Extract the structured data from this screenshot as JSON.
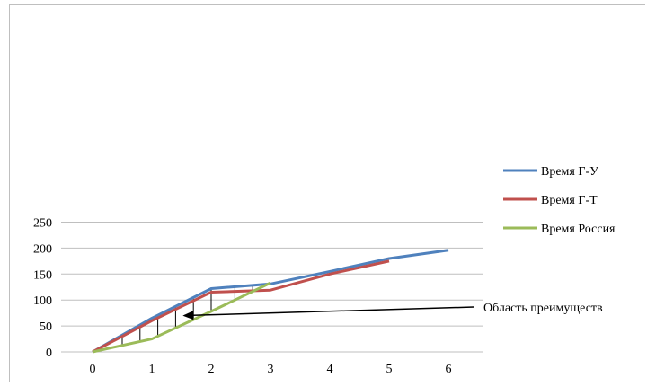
{
  "chart_data": {
    "type": "line",
    "title": "",
    "xlabel": "",
    "ylabel": "",
    "xlim": [
      0,
      6
    ],
    "ylim": [
      0,
      250
    ],
    "xticks": [
      0,
      1,
      2,
      3,
      4,
      5,
      6
    ],
    "yticks": [
      0,
      50,
      100,
      150,
      200,
      250
    ],
    "grid": "horizontal",
    "legend_position": "right",
    "series": [
      {
        "name": "Время Г-У",
        "color": "#4f81bd",
        "x": [
          0,
          1,
          2,
          3,
          4,
          5,
          6
        ],
        "y": [
          0,
          65,
          122,
          131,
          155,
          180,
          196
        ]
      },
      {
        "name": "Время Г-Т",
        "color": "#c0504d",
        "x": [
          0,
          1,
          2,
          3,
          4,
          5
        ],
        "y": [
          0,
          60,
          115,
          119,
          150,
          175
        ]
      },
      {
        "name": "Время Россия",
        "color": "#9bbb59",
        "x": [
          0,
          1,
          2,
          3
        ],
        "y": [
          0,
          25,
          78,
          133
        ]
      }
    ],
    "advantage_area": {
      "hatch_x": [
        0.5,
        0.8,
        1.1,
        1.4,
        1.7,
        2.0,
        2.4,
        2.7
      ],
      "label": "Область преимуществ",
      "arrow_target": [
        1.55,
        70
      ]
    }
  }
}
